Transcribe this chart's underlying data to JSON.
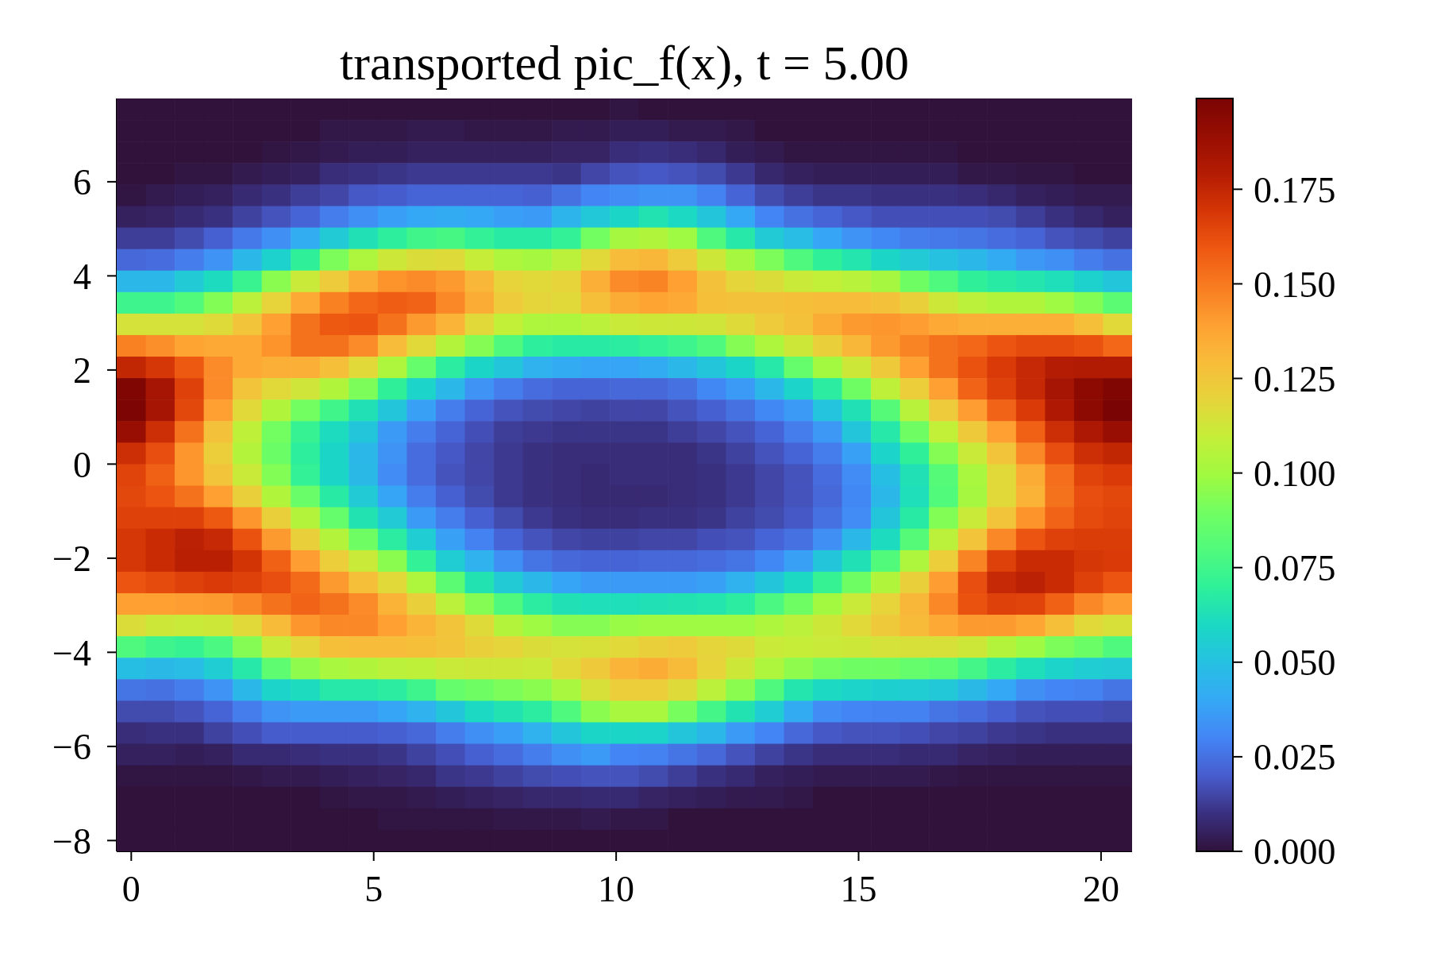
{
  "chart_data": {
    "type": "heatmap",
    "title": "transported pic_f(x), t = 5.00",
    "xlim": [
      -0.3,
      20.64
    ],
    "xticks": [
      0,
      5,
      10,
      15,
      20
    ],
    "ylim": [
      -8.23,
      7.77
    ],
    "yticks": [
      {
        "value": -8,
        "label": "−8"
      },
      {
        "value": -6,
        "label": "−6"
      },
      {
        "value": -4,
        "label": "−4"
      },
      {
        "value": -2,
        "label": "−2"
      },
      0,
      2,
      4,
      6
    ],
    "clim": [
      0,
      0.199
    ],
    "cticks": [
      {
        "value": 0,
        "label": "0.000"
      },
      0.025,
      {
        "value": 0.05,
        "label": "0.050"
      },
      0.075,
      {
        "value": 0.1,
        "label": "0.100"
      },
      0.125,
      {
        "value": 0.15,
        "label": "0.150"
      },
      0.175
    ],
    "cells": [
      [
        0,
        0,
        0,
        0,
        0,
        0,
        0,
        0,
        0,
        0,
        0,
        0,
        0,
        0,
        0,
        0,
        0,
        0.001,
        0,
        0,
        0,
        0,
        0,
        0,
        0,
        0,
        0,
        0,
        0,
        0,
        0,
        0,
        0,
        0,
        0
      ],
      [
        0,
        0,
        0,
        0,
        0,
        0,
        0,
        0.002,
        0.002,
        0.002,
        0.003,
        0.003,
        0.002,
        0.002,
        0.002,
        0.003,
        0.003,
        0.004,
        0.004,
        0.003,
        0.003,
        0.002,
        0,
        0,
        0,
        0,
        0,
        0,
        0,
        0,
        0,
        0,
        0,
        0,
        0
      ],
      [
        0,
        0,
        0,
        0,
        0,
        0.001,
        0.002,
        0.003,
        0.004,
        0.004,
        0.005,
        0.005,
        0.005,
        0.005,
        0.005,
        0.006,
        0.006,
        0.009,
        0.01,
        0.009,
        0.007,
        0.004,
        0.003,
        0.001,
        0.001,
        0.001,
        0.001,
        0.001,
        0.001,
        0,
        0,
        0,
        0,
        0,
        0
      ],
      [
        0,
        0,
        0.001,
        0.001,
        0.003,
        0.004,
        0.005,
        0.009,
        0.01,
        0.011,
        0.012,
        0.012,
        0.012,
        0.012,
        0.012,
        0.011,
        0.015,
        0.018,
        0.019,
        0.018,
        0.016,
        0.012,
        0.007,
        0.005,
        0.004,
        0.004,
        0.004,
        0.004,
        0.004,
        0.002,
        0.002,
        0.001,
        0.001,
        0,
        0
      ],
      [
        0.001,
        0.003,
        0.004,
        0.005,
        0.008,
        0.01,
        0.013,
        0.015,
        0.019,
        0.02,
        0.022,
        0.022,
        0.022,
        0.022,
        0.021,
        0.025,
        0.03,
        0.032,
        0.034,
        0.034,
        0.029,
        0.022,
        0.016,
        0.013,
        0.011,
        0.011,
        0.01,
        0.01,
        0.01,
        0.009,
        0.007,
        0.005,
        0.004,
        0.003,
        0.003
      ],
      [
        0.005,
        0.006,
        0.008,
        0.01,
        0.014,
        0.018,
        0.022,
        0.028,
        0.033,
        0.037,
        0.04,
        0.041,
        0.04,
        0.037,
        0.036,
        0.045,
        0.053,
        0.059,
        0.064,
        0.06,
        0.052,
        0.04,
        0.03,
        0.025,
        0.022,
        0.019,
        0.017,
        0.017,
        0.017,
        0.017,
        0.016,
        0.013,
        0.01,
        0.007,
        0.005
      ],
      [
        0.013,
        0.013,
        0.016,
        0.021,
        0.027,
        0.033,
        0.042,
        0.054,
        0.063,
        0.069,
        0.075,
        0.077,
        0.071,
        0.067,
        0.067,
        0.071,
        0.09,
        0.101,
        0.104,
        0.099,
        0.079,
        0.066,
        0.054,
        0.048,
        0.039,
        0.034,
        0.031,
        0.028,
        0.027,
        0.026,
        0.024,
        0.022,
        0.018,
        0.016,
        0.014
      ],
      [
        0.023,
        0.024,
        0.028,
        0.034,
        0.046,
        0.057,
        0.07,
        0.092,
        0.103,
        0.112,
        0.116,
        0.117,
        0.11,
        0.103,
        0.101,
        0.107,
        0.118,
        0.129,
        0.131,
        0.123,
        0.112,
        0.101,
        0.092,
        0.079,
        0.07,
        0.065,
        0.059,
        0.054,
        0.05,
        0.046,
        0.041,
        0.035,
        0.033,
        0.028,
        0.025
      ],
      [
        0.046,
        0.046,
        0.054,
        0.061,
        0.073,
        0.095,
        0.111,
        0.123,
        0.135,
        0.143,
        0.145,
        0.141,
        0.131,
        0.12,
        0.118,
        0.12,
        0.134,
        0.145,
        0.147,
        0.139,
        0.127,
        0.119,
        0.116,
        0.111,
        0.109,
        0.106,
        0.101,
        0.089,
        0.079,
        0.07,
        0.067,
        0.065,
        0.062,
        0.057,
        0.052
      ],
      [
        0.074,
        0.074,
        0.08,
        0.093,
        0.107,
        0.12,
        0.136,
        0.148,
        0.155,
        0.158,
        0.156,
        0.146,
        0.135,
        0.123,
        0.119,
        0.118,
        0.128,
        0.135,
        0.138,
        0.136,
        0.128,
        0.127,
        0.127,
        0.128,
        0.129,
        0.129,
        0.127,
        0.121,
        0.112,
        0.107,
        0.104,
        0.104,
        0.099,
        0.093,
        0.083
      ],
      [
        0.114,
        0.114,
        0.114,
        0.117,
        0.126,
        0.139,
        0.152,
        0.159,
        0.16,
        0.152,
        0.141,
        0.132,
        0.118,
        0.109,
        0.103,
        0.103,
        0.107,
        0.111,
        0.112,
        0.112,
        0.113,
        0.117,
        0.123,
        0.127,
        0.135,
        0.141,
        0.142,
        0.14,
        0.136,
        0.134,
        0.134,
        0.134,
        0.134,
        0.128,
        0.118
      ],
      [
        0.148,
        0.144,
        0.138,
        0.136,
        0.136,
        0.143,
        0.152,
        0.152,
        0.145,
        0.129,
        0.118,
        0.105,
        0.094,
        0.079,
        0.069,
        0.067,
        0.067,
        0.068,
        0.071,
        0.074,
        0.079,
        0.094,
        0.103,
        0.112,
        0.121,
        0.131,
        0.141,
        0.147,
        0.152,
        0.155,
        0.16,
        0.163,
        0.163,
        0.161,
        0.155
      ],
      [
        0.175,
        0.169,
        0.159,
        0.145,
        0.136,
        0.134,
        0.134,
        0.128,
        0.118,
        0.103,
        0.086,
        0.068,
        0.059,
        0.052,
        0.044,
        0.041,
        0.039,
        0.039,
        0.041,
        0.046,
        0.052,
        0.059,
        0.066,
        0.086,
        0.1,
        0.112,
        0.124,
        0.139,
        0.152,
        0.161,
        0.168,
        0.174,
        0.179,
        0.18,
        0.18
      ],
      [
        0.197,
        0.184,
        0.166,
        0.145,
        0.126,
        0.118,
        0.113,
        0.104,
        0.092,
        0.07,
        0.058,
        0.046,
        0.034,
        0.028,
        0.024,
        0.022,
        0.022,
        0.023,
        0.023,
        0.025,
        0.031,
        0.036,
        0.046,
        0.058,
        0.068,
        0.089,
        0.108,
        0.122,
        0.139,
        0.156,
        0.166,
        0.174,
        0.184,
        0.193,
        0.197
      ],
      [
        0.198,
        0.184,
        0.164,
        0.139,
        0.118,
        0.104,
        0.09,
        0.075,
        0.063,
        0.052,
        0.038,
        0.028,
        0.022,
        0.018,
        0.016,
        0.015,
        0.014,
        0.015,
        0.015,
        0.018,
        0.021,
        0.025,
        0.031,
        0.036,
        0.051,
        0.063,
        0.081,
        0.106,
        0.123,
        0.14,
        0.156,
        0.168,
        0.181,
        0.193,
        0.199
      ],
      [
        0.189,
        0.172,
        0.152,
        0.127,
        0.108,
        0.09,
        0.072,
        0.061,
        0.052,
        0.036,
        0.028,
        0.022,
        0.017,
        0.013,
        0.012,
        0.011,
        0.011,
        0.011,
        0.011,
        0.013,
        0.015,
        0.018,
        0.022,
        0.028,
        0.035,
        0.052,
        0.066,
        0.089,
        0.109,
        0.124,
        0.139,
        0.157,
        0.172,
        0.182,
        0.189
      ],
      [
        0.172,
        0.162,
        0.142,
        0.122,
        0.105,
        0.088,
        0.069,
        0.059,
        0.046,
        0.034,
        0.024,
        0.019,
        0.015,
        0.012,
        0.01,
        0.009,
        0.009,
        0.009,
        0.009,
        0.009,
        0.011,
        0.014,
        0.018,
        0.022,
        0.028,
        0.038,
        0.058,
        0.07,
        0.094,
        0.111,
        0.126,
        0.146,
        0.162,
        0.172,
        0.175
      ],
      [
        0.165,
        0.157,
        0.142,
        0.126,
        0.111,
        0.093,
        0.071,
        0.059,
        0.047,
        0.032,
        0.024,
        0.018,
        0.015,
        0.012,
        0.01,
        0.009,
        0.008,
        0.009,
        0.009,
        0.009,
        0.01,
        0.012,
        0.015,
        0.018,
        0.024,
        0.032,
        0.049,
        0.063,
        0.081,
        0.102,
        0.118,
        0.135,
        0.153,
        0.165,
        0.168
      ],
      [
        0.164,
        0.16,
        0.152,
        0.139,
        0.121,
        0.104,
        0.087,
        0.067,
        0.054,
        0.039,
        0.028,
        0.021,
        0.016,
        0.012,
        0.01,
        0.009,
        0.008,
        0.008,
        0.008,
        0.009,
        0.01,
        0.012,
        0.015,
        0.018,
        0.023,
        0.031,
        0.046,
        0.062,
        0.08,
        0.101,
        0.118,
        0.133,
        0.152,
        0.162,
        0.164
      ],
      [
        0.166,
        0.166,
        0.166,
        0.159,
        0.142,
        0.121,
        0.105,
        0.086,
        0.064,
        0.054,
        0.036,
        0.028,
        0.021,
        0.016,
        0.012,
        0.01,
        0.009,
        0.009,
        0.01,
        0.01,
        0.011,
        0.014,
        0.016,
        0.019,
        0.025,
        0.032,
        0.052,
        0.067,
        0.093,
        0.111,
        0.126,
        0.143,
        0.156,
        0.163,
        0.165
      ],
      [
        0.169,
        0.173,
        0.177,
        0.174,
        0.161,
        0.141,
        0.121,
        0.105,
        0.089,
        0.068,
        0.055,
        0.038,
        0.029,
        0.022,
        0.018,
        0.015,
        0.014,
        0.014,
        0.015,
        0.015,
        0.017,
        0.018,
        0.022,
        0.025,
        0.033,
        0.046,
        0.061,
        0.081,
        0.107,
        0.126,
        0.146,
        0.16,
        0.166,
        0.167,
        0.167
      ],
      [
        0.169,
        0.173,
        0.178,
        0.178,
        0.17,
        0.157,
        0.14,
        0.122,
        0.111,
        0.095,
        0.071,
        0.055,
        0.044,
        0.033,
        0.026,
        0.023,
        0.022,
        0.022,
        0.023,
        0.023,
        0.024,
        0.026,
        0.031,
        0.038,
        0.052,
        0.063,
        0.08,
        0.103,
        0.122,
        0.147,
        0.166,
        0.173,
        0.173,
        0.169,
        0.168
      ],
      [
        0.16,
        0.163,
        0.166,
        0.168,
        0.166,
        0.162,
        0.154,
        0.141,
        0.128,
        0.118,
        0.103,
        0.083,
        0.064,
        0.054,
        0.046,
        0.039,
        0.036,
        0.036,
        0.036,
        0.036,
        0.038,
        0.044,
        0.052,
        0.06,
        0.072,
        0.089,
        0.104,
        0.121,
        0.14,
        0.162,
        0.174,
        0.177,
        0.173,
        0.166,
        0.16
      ],
      [
        0.139,
        0.139,
        0.14,
        0.141,
        0.146,
        0.152,
        0.156,
        0.152,
        0.145,
        0.133,
        0.121,
        0.107,
        0.094,
        0.079,
        0.068,
        0.063,
        0.062,
        0.062,
        0.063,
        0.064,
        0.065,
        0.068,
        0.078,
        0.089,
        0.1,
        0.111,
        0.12,
        0.131,
        0.146,
        0.161,
        0.166,
        0.165,
        0.157,
        0.146,
        0.14
      ],
      [
        0.116,
        0.112,
        0.111,
        0.112,
        0.118,
        0.13,
        0.142,
        0.146,
        0.146,
        0.139,
        0.132,
        0.126,
        0.117,
        0.105,
        0.099,
        0.094,
        0.094,
        0.098,
        0.099,
        0.099,
        0.099,
        0.099,
        0.103,
        0.107,
        0.112,
        0.118,
        0.124,
        0.13,
        0.136,
        0.141,
        0.141,
        0.137,
        0.128,
        0.118,
        0.115
      ],
      [
        0.079,
        0.074,
        0.072,
        0.078,
        0.094,
        0.111,
        0.119,
        0.128,
        0.129,
        0.129,
        0.128,
        0.126,
        0.121,
        0.119,
        0.116,
        0.114,
        0.115,
        0.118,
        0.121,
        0.123,
        0.119,
        0.117,
        0.111,
        0.11,
        0.111,
        0.112,
        0.114,
        0.115,
        0.115,
        0.112,
        0.105,
        0.099,
        0.092,
        0.088,
        0.079
      ],
      [
        0.049,
        0.047,
        0.048,
        0.055,
        0.066,
        0.084,
        0.096,
        0.102,
        0.104,
        0.107,
        0.108,
        0.111,
        0.112,
        0.112,
        0.111,
        0.118,
        0.124,
        0.132,
        0.135,
        0.13,
        0.12,
        0.112,
        0.103,
        0.096,
        0.091,
        0.089,
        0.089,
        0.086,
        0.084,
        0.076,
        0.068,
        0.062,
        0.058,
        0.055,
        0.054
      ],
      [
        0.026,
        0.025,
        0.028,
        0.034,
        0.046,
        0.058,
        0.061,
        0.066,
        0.066,
        0.068,
        0.074,
        0.086,
        0.089,
        0.092,
        0.095,
        0.102,
        0.115,
        0.122,
        0.122,
        0.117,
        0.107,
        0.095,
        0.079,
        0.065,
        0.06,
        0.058,
        0.056,
        0.055,
        0.053,
        0.047,
        0.04,
        0.033,
        0.03,
        0.029,
        0.026
      ],
      [
        0.016,
        0.016,
        0.018,
        0.022,
        0.028,
        0.034,
        0.036,
        0.036,
        0.036,
        0.039,
        0.044,
        0.052,
        0.06,
        0.064,
        0.068,
        0.079,
        0.095,
        0.102,
        0.102,
        0.091,
        0.076,
        0.064,
        0.055,
        0.041,
        0.032,
        0.03,
        0.029,
        0.029,
        0.026,
        0.024,
        0.021,
        0.018,
        0.017,
        0.017,
        0.016
      ],
      [
        0.009,
        0.01,
        0.01,
        0.014,
        0.017,
        0.02,
        0.02,
        0.02,
        0.02,
        0.021,
        0.023,
        0.028,
        0.033,
        0.037,
        0.044,
        0.052,
        0.059,
        0.059,
        0.058,
        0.052,
        0.046,
        0.036,
        0.03,
        0.023,
        0.019,
        0.018,
        0.018,
        0.017,
        0.015,
        0.014,
        0.012,
        0.011,
        0.01,
        0.01,
        0.01
      ],
      [
        0.005,
        0.005,
        0.004,
        0.005,
        0.008,
        0.008,
        0.009,
        0.01,
        0.01,
        0.011,
        0.014,
        0.017,
        0.021,
        0.024,
        0.028,
        0.033,
        0.036,
        0.03,
        0.029,
        0.026,
        0.023,
        0.018,
        0.014,
        0.011,
        0.009,
        0.009,
        0.009,
        0.008,
        0.008,
        0.006,
        0.005,
        0.004,
        0.004,
        0.004,
        0.004
      ],
      [
        0.001,
        0.001,
        0.001,
        0.001,
        0.002,
        0.003,
        0.003,
        0.004,
        0.005,
        0.006,
        0.007,
        0.011,
        0.012,
        0.014,
        0.016,
        0.017,
        0.018,
        0.018,
        0.016,
        0.013,
        0.01,
        0.008,
        0.005,
        0.004,
        0.003,
        0.003,
        0.003,
        0.003,
        0.002,
        0.001,
        0.001,
        0.001,
        0.001,
        0.001,
        0.001
      ],
      [
        0,
        0,
        0,
        0,
        0,
        0,
        0,
        0.001,
        0.002,
        0.002,
        0.003,
        0.004,
        0.005,
        0.006,
        0.007,
        0.007,
        0.008,
        0.008,
        0.006,
        0.005,
        0.004,
        0.003,
        0.003,
        0.002,
        0,
        0,
        0,
        0,
        0,
        0,
        0,
        0,
        0,
        0,
        0
      ],
      [
        0,
        0,
        0,
        0,
        0,
        0,
        0,
        0,
        0,
        0.001,
        0.001,
        0.001,
        0.001,
        0.002,
        0.002,
        0.002,
        0.003,
        0.002,
        0.002,
        0,
        0,
        0,
        0,
        0,
        0,
        0,
        0,
        0,
        0,
        0,
        0,
        0,
        0,
        0,
        0
      ],
      [
        0,
        0,
        0,
        0,
        0,
        0,
        0,
        0,
        0,
        0,
        0,
        0,
        0,
        0,
        0,
        0,
        0,
        0,
        0,
        0,
        0,
        0,
        0,
        0,
        0,
        0,
        0,
        0,
        0,
        0,
        0,
        0,
        0,
        0,
        0
      ]
    ]
  }
}
